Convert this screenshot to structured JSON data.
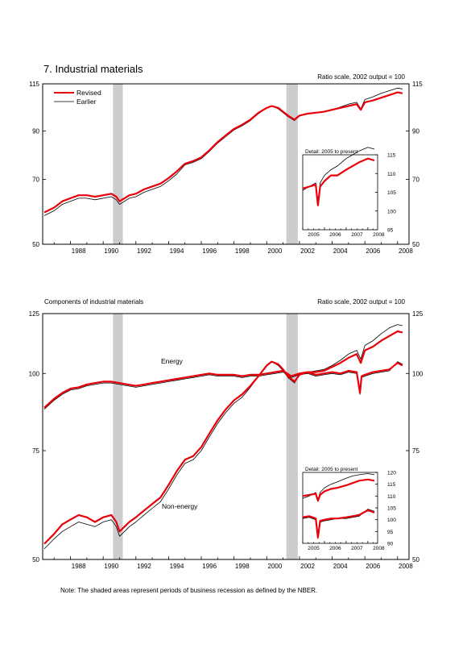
{
  "page": {
    "title": "7. Industrial materials",
    "note": "Note: The shaded areas represent periods of business recession as defined by the NBER."
  },
  "legend": {
    "revised": "Revised",
    "earlier": "Earlier",
    "revised_color": "#e8000b",
    "earlier_color": "#000000"
  },
  "recession_color": "#cccccc",
  "chart_data": [
    {
      "type": "line",
      "subtitle": "",
      "scale_note": "Ratio scale, 2002 output = 100",
      "log_scale": true,
      "xlim": [
        1986.3,
        2008.7
      ],
      "ylim": [
        50,
        115
      ],
      "yticks": [
        50,
        70,
        90,
        115
      ],
      "xticks": [
        "1988",
        "1990",
        "1992",
        "1994",
        "1996",
        "1998",
        "2000",
        "2002",
        "2004",
        "2006",
        "2008"
      ],
      "recessions": [
        [
          1990.6,
          1991.2
        ],
        [
          2001.2,
          2001.9
        ]
      ],
      "series": [
        {
          "name": "Revised",
          "x": [
            1986.4,
            1987.0,
            1987.5,
            1988.0,
            1988.5,
            1989.0,
            1989.5,
            1990.0,
            1990.5,
            1990.8,
            1991.0,
            1991.3,
            1991.6,
            1992.0,
            1992.5,
            1993.0,
            1993.5,
            1994.0,
            1994.5,
            1995.0,
            1995.5,
            1996.0,
            1996.5,
            1997.0,
            1997.5,
            1998.0,
            1998.5,
            1999.0,
            1999.5,
            2000.0,
            2000.3,
            2000.7,
            2001.0,
            2001.3,
            2001.7,
            2002.0,
            2002.5,
            2003.0,
            2003.5,
            2004.0,
            2004.5,
            2005.0,
            2005.5,
            2005.75,
            2006.0,
            2006.5,
            2007.0,
            2007.5,
            2008.0,
            2008.3
          ],
          "y": [
            59,
            60.5,
            62.5,
            63.5,
            64.5,
            64.5,
            64,
            64.5,
            65,
            64,
            62.5,
            63.5,
            64.5,
            65,
            66.5,
            67.5,
            68.5,
            70.5,
            73,
            76,
            77,
            78.5,
            81.5,
            85,
            88,
            91,
            93,
            95.5,
            99,
            101.5,
            102.5,
            101.5,
            99.5,
            97.5,
            95.5,
            97.5,
            98.5,
            99,
            99.5,
            100.5,
            101.5,
            102.5,
            103.5,
            100.5,
            104.5,
            105.5,
            107,
            108.5,
            110,
            109.5
          ]
        },
        {
          "name": "Earlier",
          "x": [
            1986.4,
            1987.0,
            1987.5,
            1988.0,
            1988.5,
            1989.0,
            1989.5,
            1990.0,
            1990.5,
            1990.8,
            1991.0,
            1991.3,
            1991.6,
            1992.0,
            1992.5,
            1993.0,
            1993.5,
            1994.0,
            1994.5,
            1995.0,
            1995.5,
            1996.0,
            1996.5,
            1997.0,
            1997.5,
            1998.0,
            1998.5,
            1999.0,
            1999.5,
            2000.0,
            2000.3,
            2000.7,
            2001.0,
            2001.3,
            2001.7,
            2002.0,
            2002.5,
            2003.0,
            2003.5,
            2004.0,
            2004.5,
            2005.0,
            2005.5,
            2005.75,
            2006.0,
            2006.5,
            2007.0,
            2007.5,
            2008.0,
            2008.3
          ],
          "y": [
            58,
            59.5,
            61.5,
            62.5,
            63.5,
            63.5,
            63,
            63.5,
            64,
            63,
            61.5,
            62.5,
            63.5,
            64,
            65.5,
            66.5,
            67.5,
            69.5,
            72,
            75.5,
            76.5,
            78,
            81,
            84.5,
            87.5,
            90.5,
            92.5,
            95,
            98.5,
            101.5,
            102.5,
            101,
            99,
            97,
            95,
            97.5,
            98.5,
            99,
            99.5,
            100.5,
            102,
            103.5,
            104.5,
            101,
            106,
            107.5,
            109.5,
            111,
            112.5,
            112
          ]
        }
      ],
      "inset": {
        "title": "Detail: 2005 to present",
        "xlim": [
          2005.0,
          2008.45
        ],
        "ylim": [
          95,
          115
        ],
        "yticks": [
          95,
          100,
          105,
          110,
          115
        ],
        "xticks": [
          "2005",
          "2006",
          "2007",
          "2008"
        ],
        "series": [
          {
            "name": "Revised",
            "x": [
              2005.0,
              2005.3,
              2005.6,
              2005.7,
              2005.8,
              2006.0,
              2006.3,
              2006.6,
              2007.0,
              2007.3,
              2007.6,
              2008.0,
              2008.3
            ],
            "y": [
              106,
              106.5,
              107,
              101.5,
              106.5,
              108,
              109.5,
              109.5,
              111,
              112,
              113,
              114,
              113.5
            ]
          },
          {
            "name": "Earlier",
            "x": [
              2005.0,
              2005.3,
              2005.6,
              2005.7,
              2005.8,
              2006.0,
              2006.3,
              2006.6,
              2007.0,
              2007.3,
              2007.6,
              2008.0,
              2008.3
            ],
            "y": [
              105.5,
              106.5,
              107.5,
              102,
              107.5,
              109.5,
              111,
              112,
              114,
              115,
              116,
              117,
              116.5
            ]
          }
        ]
      }
    },
    {
      "type": "line",
      "subtitle": "Components of industrial materials",
      "scale_note": "Ratio scale, 2002 output = 100",
      "log_scale": true,
      "xlim": [
        1986.3,
        2008.7
      ],
      "ylim": [
        50,
        125
      ],
      "yticks": [
        50,
        75,
        100,
        125
      ],
      "xticks": [
        "1988",
        "1990",
        "1992",
        "1994",
        "1996",
        "1998",
        "2000",
        "2002",
        "2004",
        "2006",
        "2008"
      ],
      "recessions": [
        [
          1990.6,
          1991.2
        ],
        [
          2001.2,
          2001.9
        ]
      ],
      "annotations": [
        "Energy",
        "Non-energy"
      ],
      "series": [
        {
          "name": "Energy (Revised)",
          "x": [
            1986.4,
            1987.0,
            1987.5,
            1988.0,
            1988.5,
            1989.0,
            1989.5,
            1990.0,
            1990.5,
            1991.0,
            1991.5,
            1992.0,
            1992.5,
            1993.0,
            1993.5,
            1994.0,
            1994.5,
            1995.0,
            1995.5,
            1996.0,
            1996.5,
            1997.0,
            1997.5,
            1998.0,
            1998.5,
            1999.0,
            1999.5,
            2000.0,
            2000.5,
            2001.0,
            2001.5,
            2002.0,
            2002.5,
            2003.0,
            2003.5,
            2004.0,
            2004.5,
            2005.0,
            2005.5,
            2005.7,
            2005.8,
            2006.0,
            2006.5,
            2007.0,
            2007.5,
            2008.0,
            2008.3
          ],
          "y": [
            88,
            91,
            93,
            94.5,
            95,
            96,
            96.5,
            97,
            97,
            96.5,
            96,
            95.5,
            96,
            96.5,
            97,
            97.5,
            98,
            98.5,
            99,
            99.5,
            100,
            99.5,
            99.5,
            99.5,
            99,
            99.5,
            99.5,
            100,
            100.5,
            101,
            99,
            100,
            100.5,
            99.5,
            100,
            100.5,
            100,
            101,
            100.5,
            93,
            99,
            99.5,
            100.5,
            101,
            101.5,
            104,
            103
          ]
        },
        {
          "name": "Energy (Earlier)",
          "x": [
            1986.4,
            1987.0,
            1987.5,
            1988.0,
            1988.5,
            1989.0,
            1989.5,
            1990.0,
            1990.5,
            1991.0,
            1991.5,
            1992.0,
            1992.5,
            1993.0,
            1993.5,
            1994.0,
            1994.5,
            1995.0,
            1995.5,
            1996.0,
            1996.5,
            1997.0,
            1997.5,
            1998.0,
            1998.5,
            1999.0,
            1999.5,
            2000.0,
            2000.5,
            2001.0,
            2001.5,
            2002.0,
            2002.5,
            2003.0,
            2003.5,
            2004.0,
            2004.5,
            2005.0,
            2005.5,
            2005.7,
            2005.8,
            2006.0,
            2006.5,
            2007.0,
            2007.5,
            2008.0,
            2008.3
          ],
          "y": [
            87.5,
            90.5,
            92.5,
            94,
            94.5,
            95.5,
            96,
            96.5,
            96.5,
            96,
            95.5,
            95,
            95.5,
            96,
            96.5,
            97,
            97.5,
            98,
            98.5,
            99,
            99.5,
            99,
            99,
            99,
            98.5,
            99,
            99,
            99.5,
            100,
            100.5,
            98.5,
            99.5,
            100,
            99,
            99.5,
            100,
            99.5,
            100.5,
            100,
            92.5,
            98.5,
            99,
            100,
            100.5,
            101,
            104.5,
            103.5
          ]
        },
        {
          "name": "Non-energy (Revised)",
          "x": [
            1986.4,
            1987.0,
            1987.5,
            1988.0,
            1988.5,
            1989.0,
            1989.5,
            1990.0,
            1990.5,
            1990.8,
            1991.0,
            1991.3,
            1991.6,
            1992.0,
            1992.5,
            1993.0,
            1993.5,
            1994.0,
            1994.5,
            1995.0,
            1995.5,
            1996.0,
            1996.5,
            1997.0,
            1997.5,
            1998.0,
            1998.5,
            1999.0,
            1999.5,
            2000.0,
            2000.3,
            2000.7,
            2001.0,
            2001.3,
            2001.7,
            2002.0,
            2002.5,
            2003.0,
            2003.5,
            2004.0,
            2004.5,
            2005.0,
            2005.5,
            2005.75,
            2006.0,
            2006.5,
            2007.0,
            2007.5,
            2008.0,
            2008.3
          ],
          "y": [
            53,
            55,
            57,
            58,
            59,
            58.5,
            57.5,
            58.5,
            59,
            57.5,
            55.5,
            56.5,
            57.5,
            58.5,
            60,
            61.5,
            63,
            66,
            69.5,
            72.5,
            73.5,
            76,
            80,
            84,
            87.5,
            90.5,
            92.5,
            95.5,
            99,
            103,
            104.5,
            103.5,
            101.5,
            99,
            97,
            99.5,
            100.5,
            100.5,
            101,
            102.5,
            104,
            106,
            107.5,
            104,
            109,
            110.5,
            113,
            115,
            117,
            116.5
          ]
        },
        {
          "name": "Non-energy (Earlier)",
          "x": [
            1986.4,
            1987.0,
            1987.5,
            1988.0,
            1988.5,
            1989.0,
            1989.5,
            1990.0,
            1990.5,
            1990.8,
            1991.0,
            1991.3,
            1991.6,
            1992.0,
            1992.5,
            1993.0,
            1993.5,
            1994.0,
            1994.5,
            1995.0,
            1995.5,
            1996.0,
            1996.5,
            1997.0,
            1997.5,
            1998.0,
            1998.5,
            1999.0,
            1999.5,
            2000.0,
            2000.3,
            2000.7,
            2001.0,
            2001.3,
            2001.7,
            2002.0,
            2002.5,
            2003.0,
            2003.5,
            2004.0,
            2004.5,
            2005.0,
            2005.5,
            2005.75,
            2006.0,
            2006.5,
            2007.0,
            2007.5,
            2008.0,
            2008.3
          ],
          "y": [
            52,
            54,
            55.5,
            56.5,
            57.5,
            57,
            56.5,
            57.5,
            58,
            56.5,
            54.5,
            55.5,
            56.5,
            57.5,
            59,
            60.5,
            62,
            65,
            68.5,
            71.5,
            72.5,
            75,
            79,
            83,
            86.5,
            89.5,
            91.5,
            95,
            99,
            103,
            104.5,
            103,
            101,
            98.5,
            96.5,
            99.5,
            100.5,
            101,
            101.5,
            103,
            105,
            107.5,
            109,
            105.5,
            111,
            113,
            116,
            118.5,
            120,
            119.5
          ]
        }
      ],
      "inset": {
        "title": "Detail: 2005 to present",
        "xlim": [
          2005.0,
          2008.45
        ],
        "ylim": [
          90,
          120
        ],
        "yticks": [
          90,
          95,
          100,
          105,
          110,
          115,
          120
        ],
        "xticks": [
          "2005",
          "2006",
          "2007",
          "2008"
        ],
        "series": [
          {
            "name": "Non-energy (Revised)",
            "x": [
              2005.0,
              2005.3,
              2005.6,
              2005.7,
              2005.8,
              2006.0,
              2006.3,
              2006.6,
              2007.0,
              2007.3,
              2007.6,
              2008.0,
              2008.3
            ],
            "y": [
              110,
              110.5,
              111,
              108,
              110.5,
              112,
              113,
              113.5,
              114.5,
              115.5,
              116.5,
              117,
              116.5
            ]
          },
          {
            "name": "Non-energy (Earlier)",
            "x": [
              2005.0,
              2005.3,
              2005.6,
              2005.7,
              2005.8,
              2006.0,
              2006.3,
              2006.6,
              2007.0,
              2007.3,
              2007.6,
              2008.0,
              2008.3
            ],
            "y": [
              109,
              110,
              111.5,
              108.5,
              111.5,
              113.5,
              115,
              116,
              117.5,
              118.5,
              119,
              119.5,
              119
            ]
          },
          {
            "name": "Energy (Revised)",
            "x": [
              2005.0,
              2005.3,
              2005.6,
              2005.7,
              2005.8,
              2006.0,
              2006.3,
              2006.6,
              2007.0,
              2007.3,
              2007.6,
              2008.0,
              2008.3
            ],
            "y": [
              101,
              101.5,
              100.5,
              92.5,
              99.5,
              100,
              100.5,
              100.5,
              101,
              101.5,
              102,
              104,
              103
            ]
          },
          {
            "name": "Energy (Earlier)",
            "x": [
              2005.0,
              2005.3,
              2005.6,
              2005.7,
              2005.8,
              2006.0,
              2006.3,
              2006.6,
              2007.0,
              2007.3,
              2007.6,
              2008.0,
              2008.3
            ],
            "y": [
              100.5,
              101,
              100,
              92,
              99,
              99.5,
              100,
              100.5,
              100.5,
              101,
              101.5,
              104.5,
              103.5
            ]
          }
        ]
      }
    }
  ]
}
